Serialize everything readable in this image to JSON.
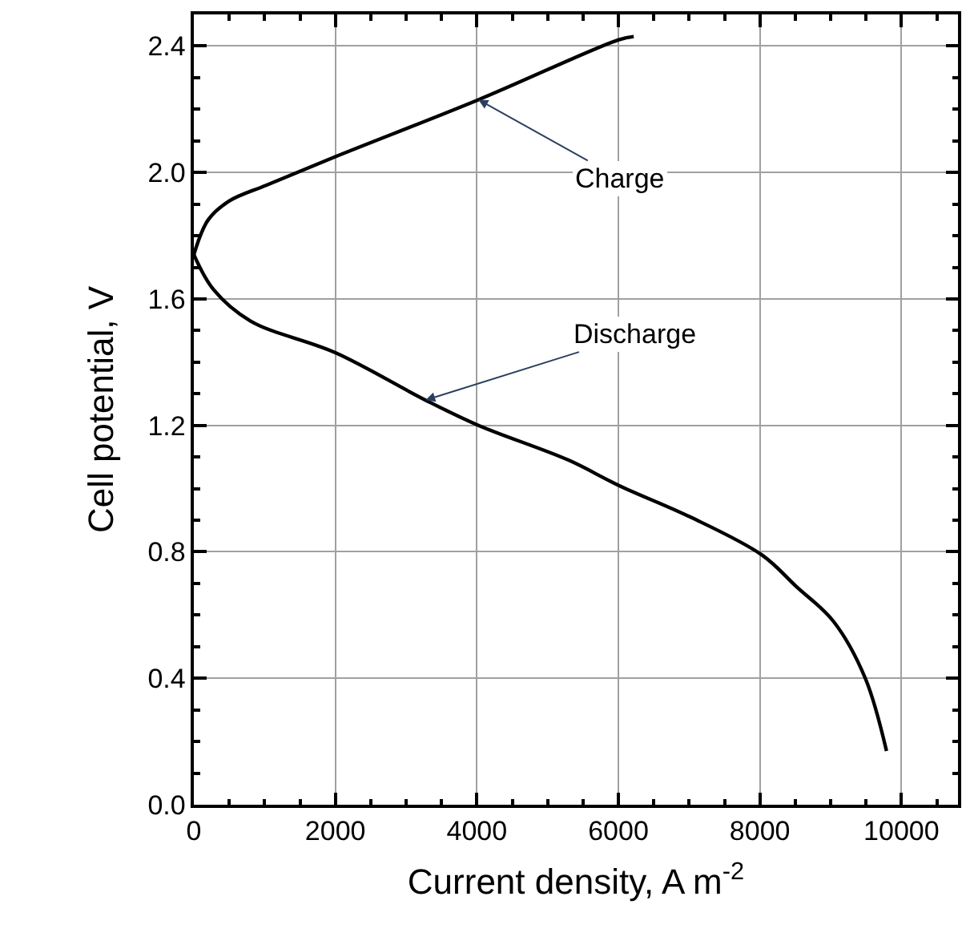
{
  "chart_data": {
    "type": "line",
    "xlabel": "Current density, A m$^{-2}$",
    "ylabel": "Cell potential, V",
    "xlim": [
      0,
      10800
    ],
    "ylim": [
      0,
      2.5
    ],
    "xticks": [
      0,
      2000,
      4000,
      6000,
      8000,
      10000
    ],
    "yticks": [
      {
        "value": 0,
        "label": "0.0"
      },
      0.4,
      0.8,
      1.2,
      1.6,
      {
        "value": 2,
        "label": "2.0"
      },
      2.4
    ],
    "grid": true,
    "marker": "none",
    "line_style": "solid",
    "series": [
      {
        "color": "#000000",
        "x": [
          0,
          202,
          502,
          1027,
          2000,
          4022,
          6006,
          6217
        ],
        "values": [
          1.74,
          1.85,
          1.91,
          1.96,
          2.05,
          2.23,
          2.42,
          2.43
        ]
      },
      {
        "color": "#000000",
        "x": [
          0,
          277,
          802,
          2000,
          3274,
          4022,
          5296,
          6006,
          7018,
          8029,
          8516,
          9040,
          9490,
          9790
        ],
        "values": [
          1.74,
          1.63,
          1.53,
          1.43,
          1.28,
          1.2,
          1.09,
          1.01,
          0.91,
          0.79,
          0.69,
          0.58,
          0.4,
          0.17
        ]
      }
    ],
    "annotations": [
      {
        "text": "Charge",
        "x": 4022,
        "y": 2.23
      },
      {
        "text": "Discharge",
        "x": 3274,
        "y": 1.28
      }
    ]
  }
}
